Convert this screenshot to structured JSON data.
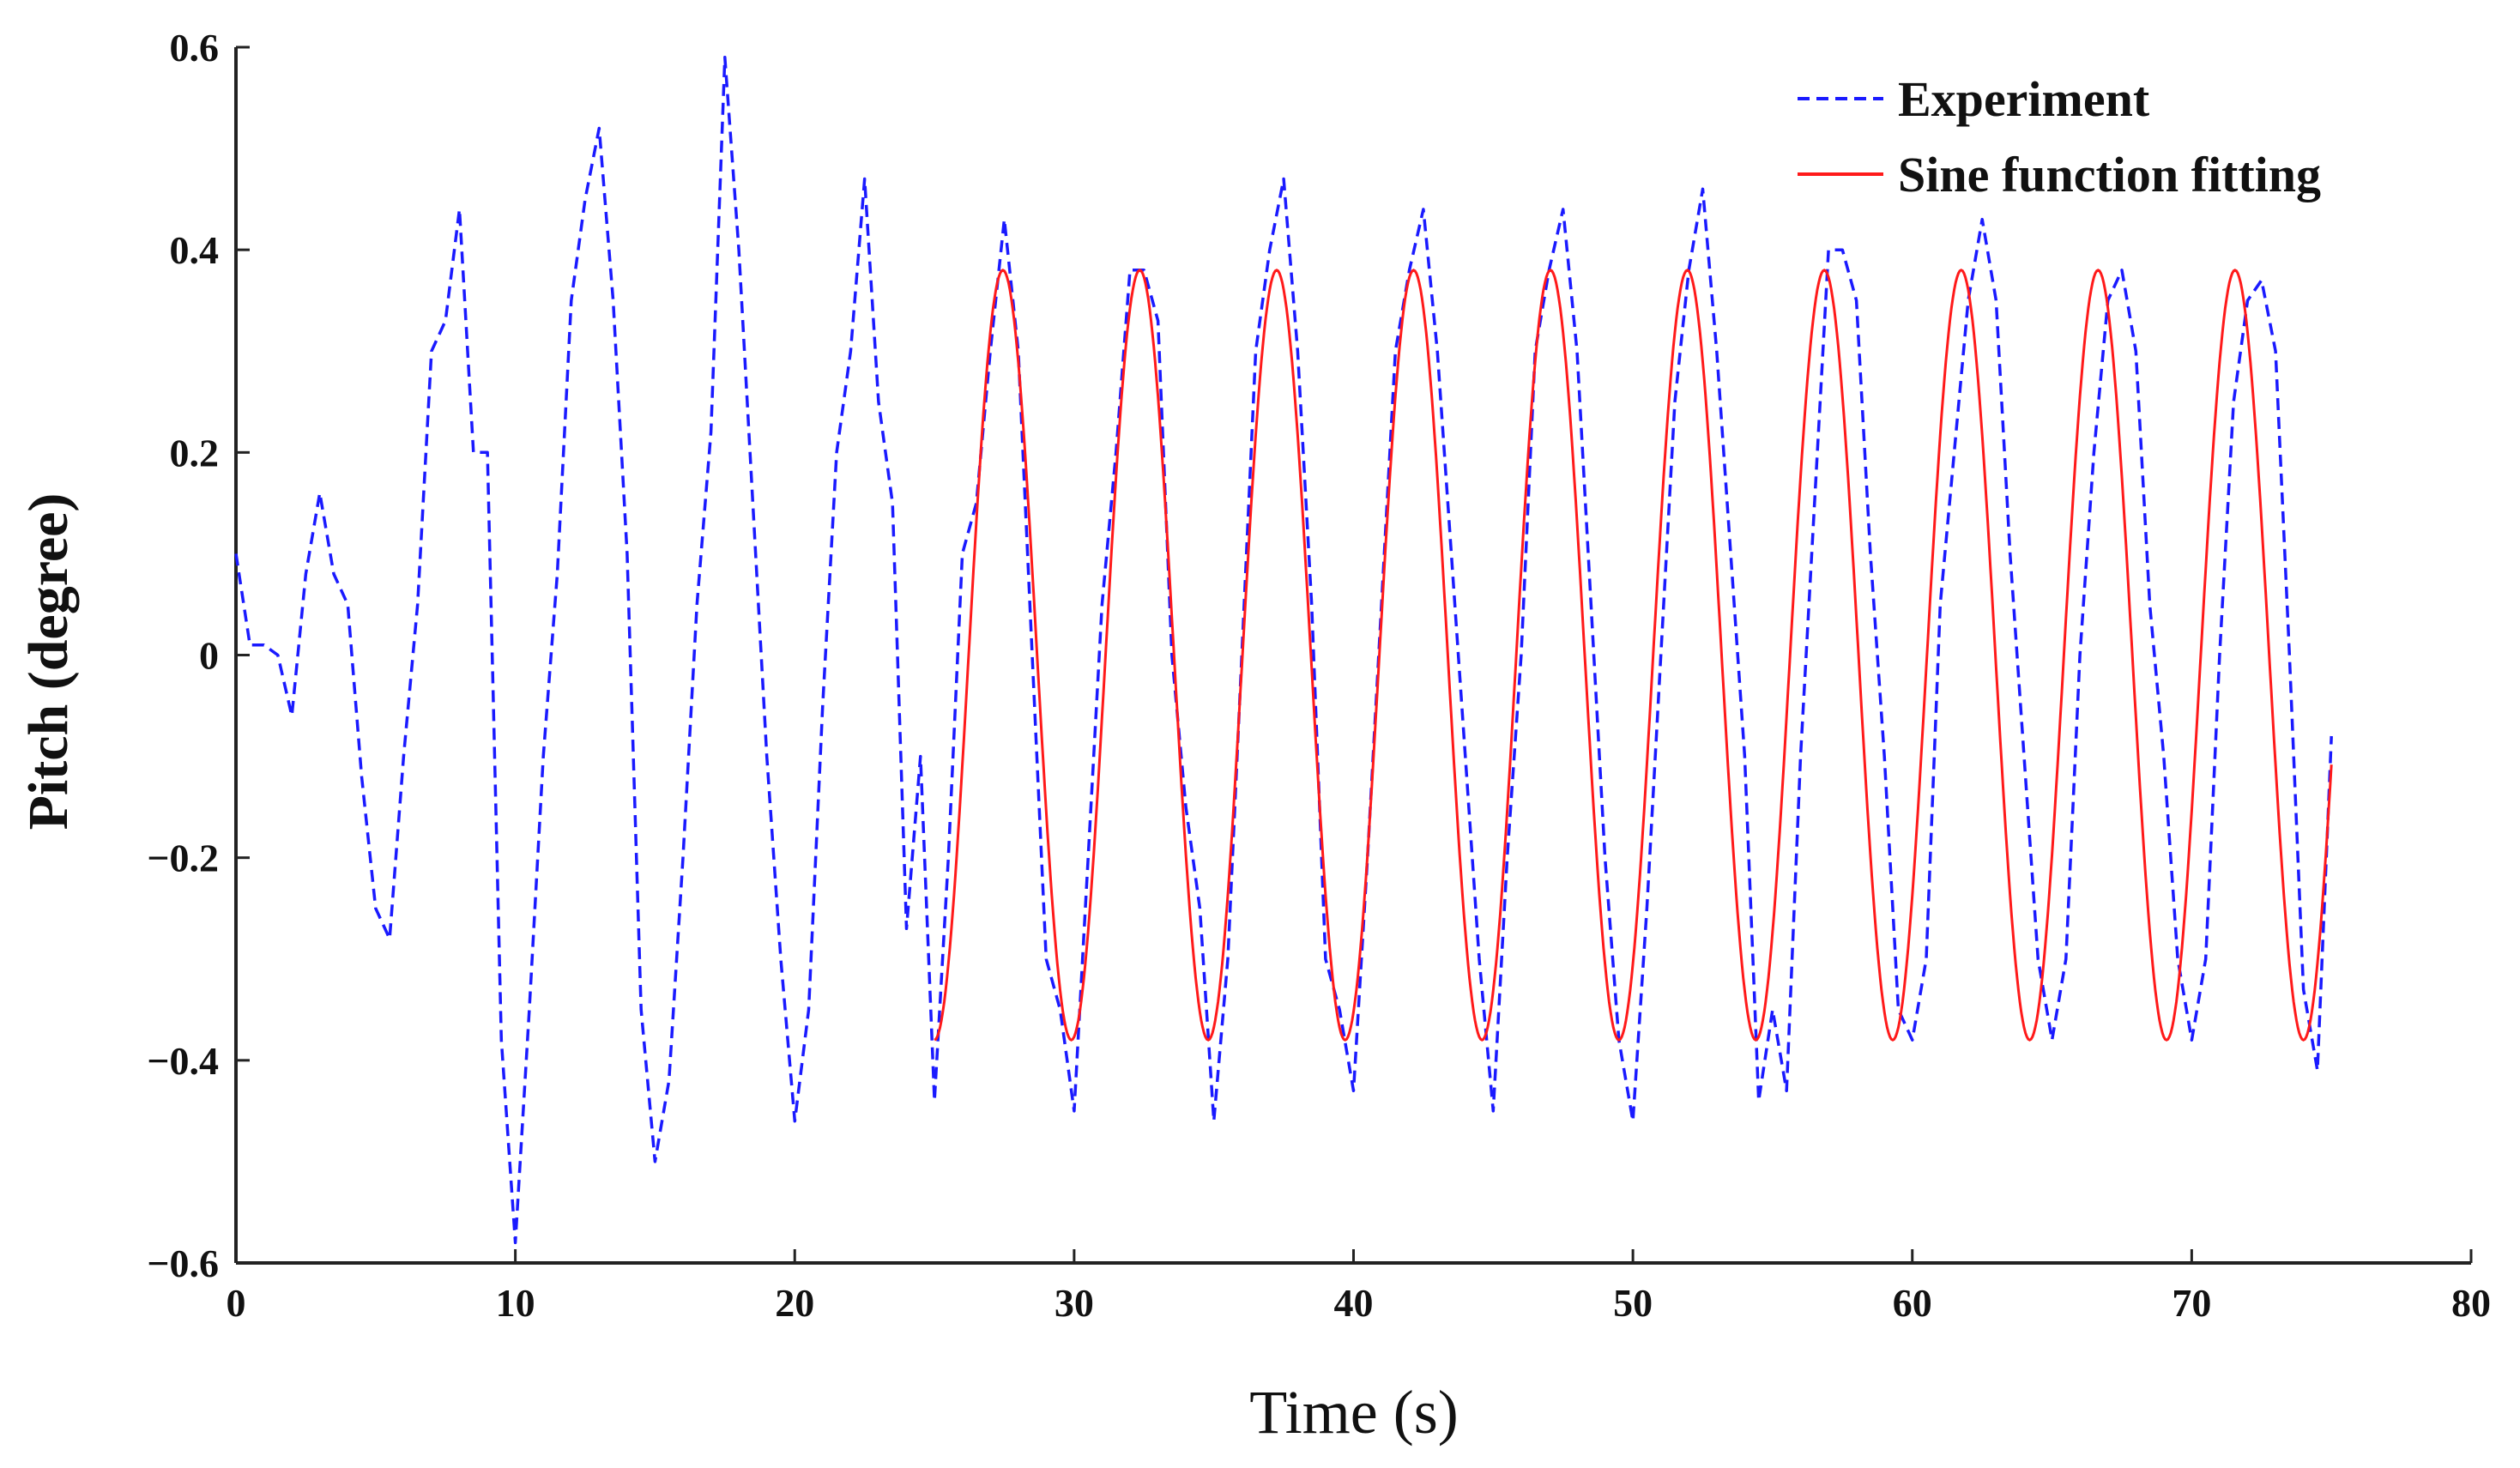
{
  "chart_data": {
    "type": "line",
    "title": "",
    "xlabel": "Time (s)",
    "ylabel": "Pitch (degree)",
    "xlim": [
      0,
      80
    ],
    "ylim": [
      -0.6,
      0.6
    ],
    "xticks": [
      0,
      10,
      20,
      30,
      40,
      50,
      60,
      70,
      80
    ],
    "xtick_labels": [
      "0",
      "10",
      "20",
      "30",
      "40",
      "50",
      "60",
      "70",
      "80"
    ],
    "yticks": [
      0.6,
      0.4,
      0.2,
      0,
      -0.2,
      -0.4,
      -0.6
    ],
    "ytick_labels": [
      "0.6",
      "0.4",
      "0.2",
      "0",
      "−0.2",
      "−0.4",
      "−0.6"
    ],
    "grid": false,
    "legend_position": "top-right",
    "series": [
      {
        "name": "Experiment",
        "style": "dashed",
        "color": "#1a1aff",
        "x": [
          0,
          0.5,
          1,
          1.5,
          2,
          2.5,
          3,
          3.5,
          4,
          4.5,
          5,
          5.5,
          6,
          6.5,
          7,
          7.5,
          8,
          8.5,
          9,
          9.5,
          10,
          10.5,
          11,
          11.5,
          12,
          12.5,
          13,
          13.5,
          14,
          14.5,
          15,
          15.5,
          16,
          16.5,
          17,
          17.5,
          18,
          18.5,
          19,
          19.5,
          20,
          20.5,
          21,
          21.5,
          22,
          22.5,
          23,
          23.5,
          24,
          24.5,
          25,
          25.5,
          26,
          26.5,
          27,
          27.5,
          28,
          28.5,
          29,
          29.5,
          30,
          30.5,
          31,
          31.5,
          32,
          32.5,
          33,
          33.5,
          34,
          34.5,
          35,
          35.5,
          36,
          36.5,
          37,
          37.5,
          38,
          38.5,
          39,
          39.5,
          40,
          40.5,
          41,
          41.5,
          42,
          42.5,
          43,
          43.5,
          44,
          44.5,
          45,
          45.5,
          46,
          46.5,
          47,
          47.5,
          48,
          48.5,
          49,
          49.5,
          50,
          50.5,
          51,
          51.5,
          52,
          52.5,
          53,
          53.5,
          54,
          54.5,
          55,
          55.5,
          56,
          56.5,
          57,
          57.5,
          58,
          58.5,
          59,
          59.5,
          60,
          60.5,
          61,
          61.5,
          62,
          62.5,
          63,
          63.5,
          64,
          64.5,
          65,
          65.5,
          66,
          66.5,
          67,
          67.5,
          68,
          68.5,
          69,
          69.5,
          70,
          70.5,
          71,
          71.5,
          72,
          72.5,
          73,
          73.5,
          74,
          74.5,
          75
        ],
        "y": [
          0.1,
          0.01,
          0.01,
          0.0,
          -0.06,
          0.08,
          0.16,
          0.08,
          0.05,
          -0.12,
          -0.25,
          -0.28,
          -0.1,
          0.05,
          0.3,
          0.33,
          0.44,
          0.2,
          0.2,
          -0.38,
          -0.58,
          -0.35,
          -0.1,
          0.08,
          0.35,
          0.45,
          0.52,
          0.35,
          0.1,
          -0.35,
          -0.5,
          -0.42,
          -0.2,
          0.05,
          0.22,
          0.59,
          0.4,
          0.15,
          -0.1,
          -0.3,
          -0.46,
          -0.35,
          -0.05,
          0.2,
          0.3,
          0.47,
          0.25,
          0.15,
          -0.27,
          -0.1,
          -0.44,
          -0.2,
          0.1,
          0.15,
          0.3,
          0.43,
          0.3,
          0.0,
          -0.3,
          -0.35,
          -0.45,
          -0.2,
          0.05,
          0.2,
          0.38,
          0.38,
          0.33,
          0.0,
          -0.15,
          -0.25,
          -0.46,
          -0.3,
          0.0,
          0.3,
          0.4,
          0.47,
          0.3,
          0.05,
          -0.3,
          -0.35,
          -0.43,
          -0.2,
          0.05,
          0.3,
          0.38,
          0.44,
          0.3,
          0.1,
          -0.1,
          -0.3,
          -0.45,
          -0.2,
          0.0,
          0.3,
          0.38,
          0.44,
          0.3,
          0.05,
          -0.2,
          -0.38,
          -0.46,
          -0.25,
          0.0,
          0.25,
          0.38,
          0.46,
          0.3,
          0.1,
          -0.1,
          -0.44,
          -0.35,
          -0.43,
          -0.1,
          0.15,
          0.4,
          0.4,
          0.35,
          0.1,
          -0.1,
          -0.35,
          -0.38,
          -0.3,
          0.05,
          0.2,
          0.35,
          0.43,
          0.35,
          0.1,
          -0.1,
          -0.3,
          -0.38,
          -0.3,
          0.0,
          0.2,
          0.35,
          0.38,
          0.3,
          0.05,
          -0.1,
          -0.3,
          -0.38,
          -0.3,
          0.0,
          0.25,
          0.35,
          0.37,
          0.3,
          0.0,
          -0.33,
          -0.41,
          -0.08
        ]
      },
      {
        "name": "Sine function fitting",
        "style": "solid",
        "color": "#ff1a1a",
        "function": "amplitude * sin(2*pi*(t - x_start)/period - pi/2)",
        "amplitude": 0.38,
        "period": 4.9,
        "x_start": 25,
        "x_end": 75
      }
    ]
  },
  "legend": {
    "items": [
      {
        "label": "Experiment",
        "color": "#1a1aff",
        "style": "dashed"
      },
      {
        "label": "Sine function fitting",
        "color": "#ff1a1a",
        "style": "solid"
      }
    ]
  }
}
